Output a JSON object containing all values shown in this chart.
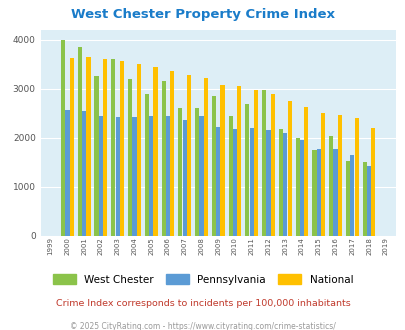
{
  "title": "West Chester Property Crime Index",
  "years": [
    "1999",
    "2000",
    "2001",
    "2002",
    "2003",
    "2004",
    "2005",
    "2006",
    "2007",
    "2008",
    "2009",
    "2010",
    "2011",
    "2012",
    "2013",
    "2014",
    "2015",
    "2016",
    "2017",
    "2018",
    "2019"
  ],
  "data_years": [
    "2000",
    "2001",
    "2002",
    "2003",
    "2004",
    "2005",
    "2006",
    "2007",
    "2008",
    "2009",
    "2010",
    "2011",
    "2012",
    "2013",
    "2014",
    "2015",
    "2016",
    "2017",
    "2018"
  ],
  "west_chester": [
    4000,
    3840,
    3250,
    3600,
    3200,
    2900,
    3150,
    2600,
    2600,
    2850,
    2450,
    2680,
    2980,
    2180,
    1990,
    1760,
    2030,
    1530,
    1510
  ],
  "pennsylvania": [
    2570,
    2540,
    2450,
    2430,
    2430,
    2440,
    2450,
    2370,
    2440,
    2210,
    2180,
    2200,
    2160,
    2100,
    1950,
    1780,
    1780,
    1650,
    1430
  ],
  "national": [
    3620,
    3650,
    3600,
    3570,
    3510,
    3440,
    3350,
    3280,
    3220,
    3070,
    3060,
    2980,
    2900,
    2750,
    2620,
    2510,
    2460,
    2400,
    2190
  ],
  "west_chester_color": "#8bc34a",
  "pennsylvania_color": "#5b9bd5",
  "national_color": "#ffc000",
  "bg_color": "#ddeef6",
  "ylim": [
    0,
    4200
  ],
  "yticks": [
    0,
    1000,
    2000,
    3000,
    4000
  ],
  "subtitle": "Crime Index corresponds to incidents per 100,000 inhabitants",
  "footer": "© 2025 CityRating.com - https://www.cityrating.com/crime-statistics/",
  "title_color": "#1a7cc9",
  "subtitle_color": "#c0392b",
  "footer_color": "#999999",
  "legend_labels": [
    "West Chester",
    "Pennsylvania",
    "National"
  ]
}
